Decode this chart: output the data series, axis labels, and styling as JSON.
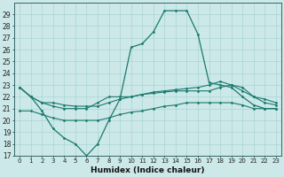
{
  "xlabel": "Humidex (Indice chaleur)",
  "bg_color": "#cce8e8",
  "grid_color": "#aad4d4",
  "line_color": "#1a7a6e",
  "xlim": [
    -0.5,
    23.5
  ],
  "ylim": [
    17,
    30
  ],
  "yticks": [
    17,
    18,
    19,
    20,
    21,
    22,
    23,
    24,
    25,
    26,
    27,
    28,
    29
  ],
  "xticks": [
    0,
    1,
    2,
    3,
    4,
    5,
    6,
    7,
    8,
    9,
    10,
    11,
    12,
    13,
    14,
    15,
    16,
    17,
    18,
    19,
    20,
    21,
    22,
    23
  ],
  "line1_x": [
    0,
    1,
    2,
    3,
    4,
    5,
    6,
    7,
    8,
    9,
    10,
    11,
    12,
    13,
    14,
    15,
    16,
    17,
    18,
    19,
    20,
    21,
    22,
    23
  ],
  "line1_y": [
    22.8,
    22.0,
    20.8,
    19.3,
    18.5,
    18.0,
    17.0,
    18.0,
    20.0,
    21.8,
    26.2,
    26.5,
    27.5,
    29.3,
    29.3,
    29.3,
    27.3,
    23.2,
    23.0,
    22.8,
    22.0,
    21.3,
    21.0,
    21.0
  ],
  "line2_x": [
    0,
    1,
    2,
    3,
    4,
    5,
    6,
    7,
    8,
    9,
    10,
    11,
    12,
    13,
    14,
    15,
    16,
    17,
    18,
    19,
    20,
    21,
    22,
    23
  ],
  "line2_y": [
    22.8,
    22.0,
    21.5,
    21.5,
    21.3,
    21.2,
    21.2,
    21.2,
    21.5,
    21.8,
    22.0,
    22.2,
    22.3,
    22.4,
    22.5,
    22.5,
    22.5,
    22.5,
    22.8,
    23.0,
    22.5,
    22.0,
    21.5,
    21.3
  ],
  "line3_x": [
    0,
    1,
    2,
    3,
    4,
    5,
    6,
    7,
    8,
    9,
    10,
    11,
    12,
    13,
    14,
    15,
    16,
    17,
    18,
    19,
    20,
    21,
    22,
    23
  ],
  "line3_y": [
    22.8,
    22.0,
    21.5,
    21.2,
    21.0,
    21.0,
    21.0,
    21.5,
    22.0,
    22.0,
    22.0,
    22.2,
    22.4,
    22.5,
    22.6,
    22.7,
    22.8,
    23.0,
    23.3,
    23.0,
    22.8,
    22.0,
    21.8,
    21.5
  ],
  "line4_x": [
    0,
    1,
    2,
    3,
    4,
    5,
    6,
    7,
    8,
    9,
    10,
    11,
    12,
    13,
    14,
    15,
    16,
    17,
    18,
    19,
    20,
    21,
    22,
    23
  ],
  "line4_y": [
    20.8,
    20.8,
    20.5,
    20.2,
    20.0,
    20.0,
    20.0,
    20.0,
    20.2,
    20.5,
    20.7,
    20.8,
    21.0,
    21.2,
    21.3,
    21.5,
    21.5,
    21.5,
    21.5,
    21.5,
    21.3,
    21.0,
    21.0,
    21.0
  ]
}
